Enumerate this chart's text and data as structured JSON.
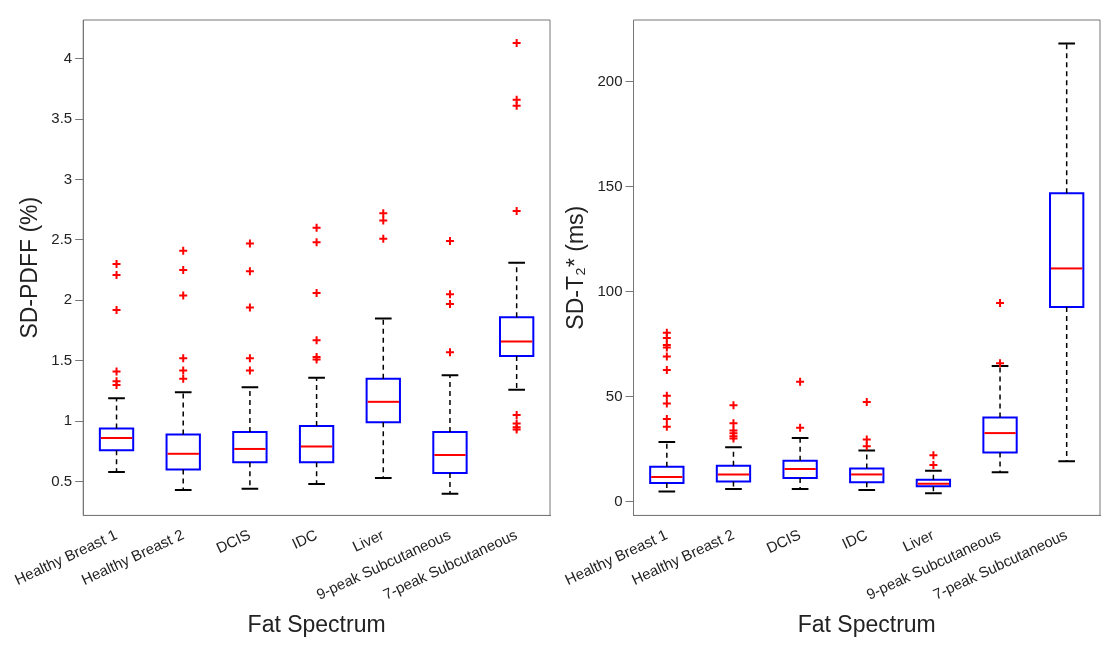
{
  "chart_data": [
    {
      "type": "box",
      "xlabel": "Fat Spectrum",
      "ylabel": "SD-PDFF (%)",
      "categories": [
        "Healthy Breast 1",
        "Healthy Breast 2",
        "DCIS",
        "IDC",
        "Liver",
        "9-peak Subcutaneous",
        "7-peak Subcutaneous"
      ],
      "ylim": [
        0.22,
        4.32
      ],
      "yticks": [
        0.5,
        1,
        1.5,
        2,
        2.5,
        3,
        3.5,
        4
      ],
      "grid": false,
      "marker": "cross",
      "series": [
        {
          "color": "#0000ff",
          "boxes": [
            {
              "low": 0.58,
              "q1": 0.76,
              "median": 0.86,
              "q3": 0.94,
              "high": 1.19,
              "outliers": [
                1.3,
                1.33,
                1.41,
                1.92,
                2.21,
                2.3
              ]
            },
            {
              "low": 0.43,
              "q1": 0.6,
              "median": 0.73,
              "q3": 0.89,
              "high": 1.24,
              "outliers": [
                1.35,
                1.42,
                1.52,
                2.04,
                2.25,
                2.41
              ]
            },
            {
              "low": 0.44,
              "q1": 0.66,
              "median": 0.77,
              "q3": 0.91,
              "high": 1.28,
              "outliers": [
                1.42,
                1.52,
                1.94,
                2.24,
                2.47
              ]
            },
            {
              "low": 0.48,
              "q1": 0.66,
              "median": 0.79,
              "q3": 0.96,
              "high": 1.36,
              "outliers": [
                1.51,
                1.53,
                1.67,
                2.06,
                2.48,
                2.6
              ]
            },
            {
              "low": 0.53,
              "q1": 0.99,
              "median": 1.16,
              "q3": 1.35,
              "high": 1.85,
              "outliers": [
                2.51,
                2.66,
                2.72
              ]
            },
            {
              "low": 0.4,
              "q1": 0.57,
              "median": 0.72,
              "q3": 0.91,
              "high": 1.38,
              "outliers": [
                1.57,
                1.97,
                2.05,
                2.49
              ]
            },
            {
              "low": 1.26,
              "q1": 1.54,
              "median": 1.66,
              "q3": 1.86,
              "high": 2.31,
              "outliers": [
                0.93,
                0.95,
                0.98,
                1.05,
                2.74,
                3.61,
                3.66,
                4.13
              ]
            }
          ]
        }
      ]
    },
    {
      "type": "box",
      "xlabel": "Fat Spectrum",
      "ylabel": "SD-T₂* (ms)",
      "categories": [
        "Healthy Breast 1",
        "Healthy Breast 2",
        "DCIS",
        "IDC",
        "Liver",
        "9-peak Subcutaneous",
        "7-peak Subcutaneous"
      ],
      "ylim": [
        -6.4,
        229.5
      ],
      "yticks": [
        0,
        50,
        100,
        150,
        200
      ],
      "grid": false,
      "marker": "cross",
      "series": [
        {
          "color": "#0000ff",
          "boxes": [
            {
              "low": 5,
              "q1": 9,
              "median": 11.9,
              "q3": 16.8,
              "high": 28.5,
              "outliers": [
                35.8,
                39.5,
                46.9,
                50.6,
                62.8,
                69.3,
                73.5,
                74.7,
                78.1,
                80.6
              ]
            },
            {
              "low": 6.2,
              "q1": 9.7,
              "median": 13.1,
              "q3": 17.3,
              "high": 26,
              "outliers": [
                30.2,
                31.3,
                32.7,
                34,
                37.5,
                46.1
              ]
            },
            {
              "low": 6.2,
              "q1": 11.4,
              "median": 15.7,
              "q3": 19.6,
              "high": 30.5,
              "outliers": [
                35.3,
                57.3
              ]
            },
            {
              "low": 5.7,
              "q1": 9.4,
              "median": 13.1,
              "q3": 15.9,
              "high": 24.5,
              "outliers": [
                26.5,
                29.8,
                47.6
              ]
            },
            {
              "low": 4.2,
              "q1": 7.5,
              "median": 8.7,
              "q3": 10.6,
              "high": 14.9,
              "outliers": [
                17.6,
                22.3
              ]
            },
            {
              "low": 14.2,
              "q1": 23.6,
              "median": 32.8,
              "q3": 40.2,
              "high": 64.7,
              "outliers": [
                66,
                94.8
              ]
            },
            {
              "low": 19.4,
              "q1": 92.8,
              "median": 111.2,
              "q3": 147,
              "high": 218.3
            }
          ]
        }
      ]
    }
  ]
}
